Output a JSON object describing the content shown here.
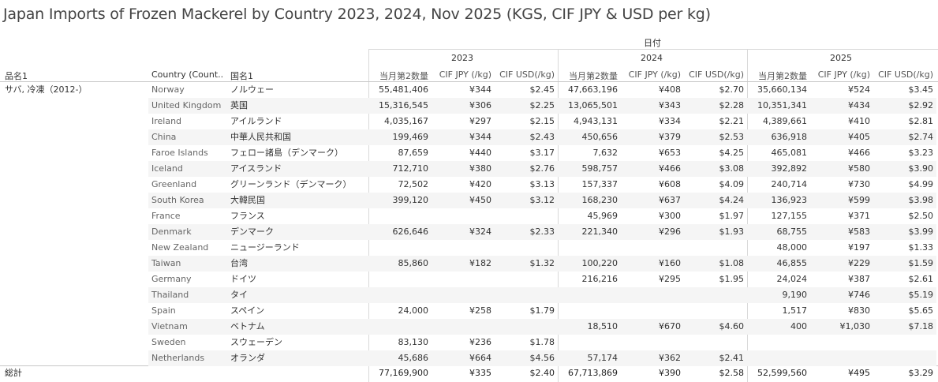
{
  "title": "Japan Imports of Frozen Mackerel by Country 2023, 2024, Nov 2025 (KGS, CIF JPY & USD per kg)",
  "header": {
    "group_label": "日付",
    "row_header_1": "品名1",
    "row_header_2": "Country (Count..",
    "row_header_3": "国名1",
    "years": [
      "2023",
      "2024",
      "2025"
    ],
    "measures": [
      "当月第2数量",
      "CIF JPY (/kg)",
      "CIF USD(/kg)"
    ]
  },
  "product_label": "サバ, 冷凍（2012-）",
  "total_label": "総計",
  "chart_data": {
    "type": "table",
    "title": "Japan Imports of Frozen Mackerel by Country 2023, 2024, Nov 2025 (KGS, CIF JPY & USD per kg)",
    "columns": [
      "2023 当月第2数量",
      "2023 CIF JPY (/kg)",
      "2023 CIF USD(/kg)",
      "2024 当月第2数量",
      "2024 CIF JPY (/kg)",
      "2024 CIF USD(/kg)",
      "2025 当月第2数量",
      "2025 CIF JPY (/kg)",
      "2025 CIF USD(/kg)"
    ],
    "rows": [
      {
        "country": "Norway",
        "jp": "ノルウェー",
        "values": [
          "55,481,406",
          "¥344",
          "$2.45",
          "47,663,196",
          "¥408",
          "$2.70",
          "35,660,134",
          "¥524",
          "$3.45"
        ]
      },
      {
        "country": "United Kingdom",
        "jp": "英国",
        "values": [
          "15,316,545",
          "¥306",
          "$2.25",
          "13,065,501",
          "¥343",
          "$2.28",
          "10,351,341",
          "¥434",
          "$2.92"
        ]
      },
      {
        "country": "Ireland",
        "jp": "アイルランド",
        "values": [
          "4,035,167",
          "¥297",
          "$2.15",
          "4,943,131",
          "¥334",
          "$2.21",
          "4,389,661",
          "¥410",
          "$2.81"
        ]
      },
      {
        "country": "China",
        "jp": "中華人民共和国",
        "values": [
          "199,469",
          "¥344",
          "$2.43",
          "450,656",
          "¥379",
          "$2.53",
          "636,918",
          "¥405",
          "$2.74"
        ]
      },
      {
        "country": "Faroe Islands",
        "jp": "フェロー諸島（デンマーク）",
        "values": [
          "87,659",
          "¥440",
          "$3.17",
          "7,632",
          "¥653",
          "$4.25",
          "465,081",
          "¥466",
          "$3.23"
        ]
      },
      {
        "country": "Iceland",
        "jp": "アイスランド",
        "values": [
          "712,710",
          "¥380",
          "$2.76",
          "598,757",
          "¥466",
          "$3.08",
          "392,892",
          "¥580",
          "$3.90"
        ]
      },
      {
        "country": "Greenland",
        "jp": "グリーンランド（デンマーク）",
        "values": [
          "72,502",
          "¥420",
          "$3.13",
          "157,337",
          "¥608",
          "$4.09",
          "240,714",
          "¥730",
          "$4.99"
        ]
      },
      {
        "country": "South Korea",
        "jp": "大韓民国",
        "values": [
          "399,120",
          "¥450",
          "$3.12",
          "168,230",
          "¥637",
          "$4.24",
          "136,923",
          "¥599",
          "$3.98"
        ]
      },
      {
        "country": "France",
        "jp": "フランス",
        "values": [
          "",
          "",
          "",
          "45,969",
          "¥300",
          "$1.97",
          "127,155",
          "¥371",
          "$2.50"
        ]
      },
      {
        "country": "Denmark",
        "jp": "デンマーク",
        "values": [
          "626,646",
          "¥324",
          "$2.33",
          "221,340",
          "¥296",
          "$1.93",
          "68,755",
          "¥583",
          "$3.99"
        ]
      },
      {
        "country": "New Zealand",
        "jp": "ニュージーランド",
        "values": [
          "",
          "",
          "",
          "",
          "",
          "",
          "48,000",
          "¥197",
          "$1.33"
        ]
      },
      {
        "country": "Taiwan",
        "jp": "台湾",
        "values": [
          "85,860",
          "¥182",
          "$1.32",
          "100,220",
          "¥160",
          "$1.08",
          "46,855",
          "¥229",
          "$1.59"
        ]
      },
      {
        "country": "Germany",
        "jp": "ドイツ",
        "values": [
          "",
          "",
          "",
          "216,216",
          "¥295",
          "$1.95",
          "24,024",
          "¥387",
          "$2.61"
        ]
      },
      {
        "country": "Thailand",
        "jp": "タイ",
        "values": [
          "",
          "",
          "",
          "",
          "",
          "",
          "9,190",
          "¥746",
          "$5.19"
        ]
      },
      {
        "country": "Spain",
        "jp": "スペイン",
        "values": [
          "24,000",
          "¥258",
          "$1.79",
          "",
          "",
          "",
          "1,517",
          "¥830",
          "$5.65"
        ]
      },
      {
        "country": "Vietnam",
        "jp": "ベトナム",
        "values": [
          "",
          "",
          "",
          "18,510",
          "¥670",
          "$4.60",
          "400",
          "¥1,030",
          "$7.18"
        ]
      },
      {
        "country": "Sweden",
        "jp": "スウェーデン",
        "values": [
          "83,130",
          "¥236",
          "$1.78",
          "",
          "",
          "",
          "",
          "",
          ""
        ]
      },
      {
        "country": "Netherlands",
        "jp": "オランダ",
        "values": [
          "45,686",
          "¥664",
          "$4.56",
          "57,174",
          "¥362",
          "$2.41",
          "",
          "",
          ""
        ]
      }
    ],
    "total": [
      "77,169,900",
      "¥335",
      "$2.40",
      "67,713,869",
      "¥390",
      "$2.58",
      "52,599,560",
      "¥495",
      "$3.29"
    ]
  }
}
